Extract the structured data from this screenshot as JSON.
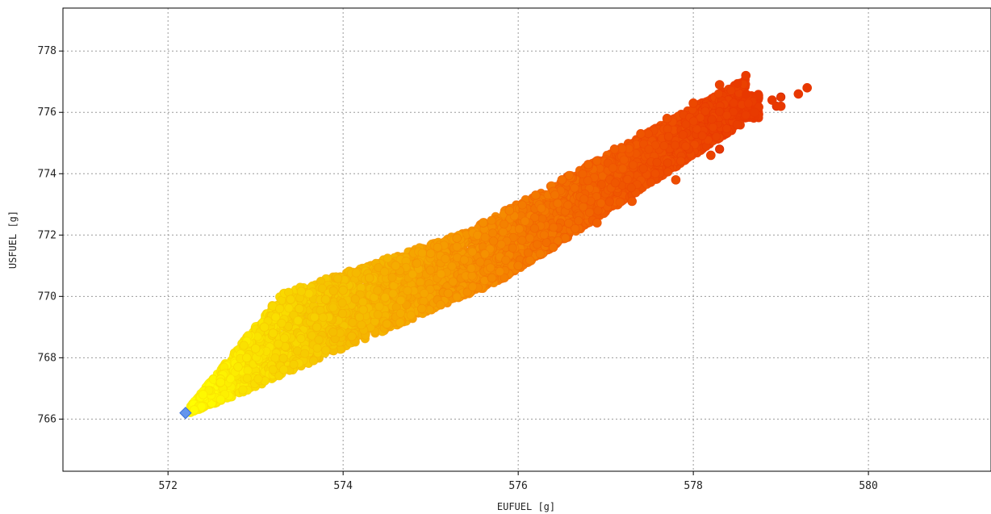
{
  "chart_data": {
    "type": "scatter",
    "xlabel": "EUFUEL [g]",
    "ylabel": "USFUEL [g]",
    "xlim": [
      570.8,
      581.4
    ],
    "ylim": [
      764.3,
      779.4
    ],
    "x_ticks": [
      572,
      574,
      576,
      578,
      580
    ],
    "y_ticks": [
      766,
      768,
      770,
      772,
      774,
      776,
      778
    ],
    "x_tick_labels": [
      "572",
      "574",
      "576",
      "578",
      "580"
    ],
    "y_tick_labels": [
      "766",
      "768",
      "770",
      "772",
      "774",
      "776",
      "778"
    ],
    "grid": true,
    "color_gradient": [
      "#ffff00",
      "#f5c400",
      "#f59000",
      "#f05a00",
      "#e83800"
    ],
    "series": [
      {
        "marker": "circle",
        "x": [
          572.3,
          572.4,
          572.6,
          572.8,
          573.0,
          573.2,
          573.5,
          573.8,
          574.0,
          574.3,
          574.6,
          575.0,
          575.3,
          575.6,
          575.9,
          576.2,
          576.5,
          576.8,
          577.1,
          577.4,
          577.7,
          578.0,
          578.3,
          578.6,
          578.9,
          579.2,
          579.3,
          572.6,
          572.9,
          573.1,
          573.4,
          573.7,
          574.1,
          574.5,
          574.9,
          575.2,
          575.7,
          576.0,
          576.4,
          576.9,
          577.3,
          577.8,
          578.2,
          578.5,
          578.7,
          579.0
        ],
        "y": [
          766.3,
          766.8,
          767.3,
          767.7,
          768.3,
          768.8,
          769.6,
          769.9,
          770.2,
          770.6,
          771.0,
          771.4,
          771.9,
          772.4,
          772.8,
          773.3,
          773.8,
          774.3,
          774.8,
          775.3,
          775.8,
          776.3,
          776.9,
          777.2,
          776.4,
          776.6,
          776.8,
          767.2,
          768.0,
          769.0,
          769.9,
          769.0,
          768.7,
          769.1,
          769.6,
          770.1,
          770.6,
          771.0,
          771.6,
          772.4,
          773.1,
          773.8,
          774.6,
          775.6,
          776.0,
          776.2
        ]
      },
      {
        "marker": "diamond",
        "color": "#6495ed",
        "x": [
          572.2
        ],
        "y": [
          766.2
        ]
      }
    ]
  }
}
